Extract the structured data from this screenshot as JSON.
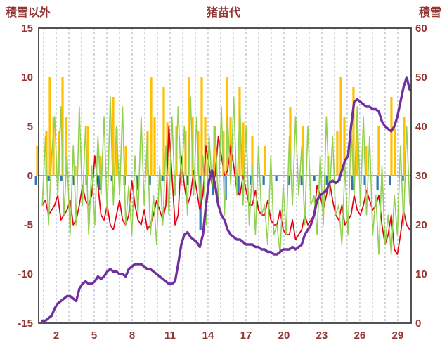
{
  "header": {
    "title": "猪苗代",
    "left_label": "積雪以外",
    "right_label": "積雪"
  },
  "colors": {
    "text": "#943634",
    "grid": "#a6adbb",
    "zero_line": "#808080",
    "border": "#404040",
    "red_line": "#e60012",
    "green_line": "#92d050",
    "purple_line": "#7030a0",
    "orange_bar": "#ffc000",
    "blue_bar": "#2e75b6",
    "background": "#ffffff"
  },
  "chart_data": {
    "type": "line",
    "title": "猪苗代",
    "x_axis": {
      "tick_labels": [
        "2",
        "5",
        "8",
        "11",
        "14",
        "17",
        "20",
        "23",
        "26",
        "29"
      ],
      "day_start": 1,
      "day_end": 30,
      "grid": "dashed-vertical-per-day"
    },
    "left_axis": {
      "label": "積雪以外",
      "range": [
        -15,
        15
      ],
      "ticks": [
        "15",
        "10",
        "5",
        "0",
        "-5",
        "-10",
        "-15"
      ]
    },
    "right_axis": {
      "label": "積雪",
      "range": [
        0,
        60
      ],
      "ticks": [
        "60",
        "50",
        "40",
        "30",
        "20",
        "10",
        "0"
      ]
    },
    "legend": "none",
    "series": [
      {
        "id": "red_line",
        "type": "line",
        "axis": "left",
        "values": [
          -3,
          -2.5,
          -4,
          -3.5,
          -3,
          -2,
          -4.5,
          -4,
          -3.5,
          -2.5,
          -5,
          -4.5,
          -3,
          -1,
          -2.5,
          -3,
          -2,
          2,
          -1,
          -4,
          -4.5,
          -3,
          -5,
          -5.5,
          -4,
          -2.5,
          -4.5,
          -5,
          -4,
          -0.5,
          -3,
          -4.5,
          -5,
          -3.5,
          -5.5,
          -5,
          -4,
          -2.5,
          -3.5,
          -4.5,
          -3,
          5,
          0,
          -5,
          -4,
          2,
          -1,
          -3,
          -2,
          0.5,
          -1.5,
          -3.5,
          -2,
          3,
          1,
          -1,
          0,
          4,
          2,
          0,
          0.5,
          3,
          1,
          -1.5,
          -2,
          0,
          -1.5,
          -3,
          -3,
          -1.5,
          -3.5,
          -4,
          -4,
          -2.5,
          -4.5,
          -5,
          -5,
          -3.5,
          -5.5,
          -6,
          -6,
          -4.5,
          -6.5,
          -6,
          -5.5,
          -4,
          -5,
          -4.5,
          -4,
          -1,
          -2,
          -3.5,
          -2,
          -0.5,
          -2.5,
          -4,
          -4.5,
          -3,
          -5,
          -4.5,
          -4,
          -2,
          -3.5,
          -4,
          -3,
          -1.5,
          -2.5,
          -3.5,
          -3,
          -2,
          -5,
          -7,
          -6,
          -4,
          -7.5,
          -8,
          -6,
          -3.5,
          -5,
          -5.5
        ]
      },
      {
        "id": "green_line",
        "type": "line",
        "axis": "left",
        "values": [
          -3,
          4,
          -5,
          2,
          6,
          -2,
          7,
          -4,
          2,
          -6,
          3,
          -5,
          7,
          -3,
          5,
          -6,
          1,
          -5,
          4,
          -2,
          6,
          -4,
          8,
          -3,
          5,
          -2,
          7,
          -5,
          -1,
          -6,
          2,
          -4,
          6,
          -3,
          4,
          -6,
          -2,
          -7,
          1,
          -5,
          3,
          -4,
          6,
          -2,
          7,
          -1,
          5,
          -4,
          8,
          -2,
          6,
          -3,
          2,
          -5,
          4,
          -1,
          5,
          -3,
          7,
          -4,
          6,
          -1,
          8,
          -2,
          7,
          -3,
          5,
          -5,
          1,
          -6,
          3,
          -4,
          -3,
          -7,
          2,
          -6,
          -5,
          -8,
          -1,
          -6,
          4,
          -3,
          6,
          -2,
          3,
          -5,
          5,
          -3,
          -2,
          -6,
          2,
          -5,
          6,
          -2,
          4,
          -4,
          -3,
          -7,
          1,
          -6,
          5,
          -2,
          7,
          -3,
          6,
          -4,
          4,
          -6,
          -2,
          -8,
          1,
          -7,
          -4,
          -8,
          -2,
          -6,
          3,
          -5,
          5,
          -3
        ]
      },
      {
        "id": "purple_line",
        "type": "line",
        "axis": "right",
        "values": [
          0.5,
          0.5,
          1,
          1.5,
          3,
          4,
          4.5,
          5,
          5.5,
          5.5,
          5,
          4.5,
          7,
          8,
          8.5,
          8,
          8,
          8.5,
          9.5,
          9,
          9.5,
          10.5,
          11,
          10.5,
          10.5,
          10,
          10,
          9.5,
          11,
          11.5,
          12,
          12,
          12,
          11.5,
          11,
          11,
          10.5,
          10,
          9.5,
          9,
          8.5,
          8,
          8,
          8.5,
          12,
          16,
          18,
          18.5,
          17.5,
          17,
          16.5,
          15.5,
          18,
          24,
          29,
          31,
          28,
          24,
          22,
          21,
          19,
          18,
          17.5,
          17,
          17,
          16.5,
          16,
          16,
          16,
          15.5,
          15.5,
          15,
          15,
          14.5,
          14.5,
          14,
          14,
          14.5,
          15,
          15,
          15,
          15.5,
          15,
          15.5,
          16,
          18,
          19,
          20,
          22,
          25,
          26,
          26.5,
          27,
          28.5,
          29,
          28.5,
          29,
          31,
          33,
          34,
          40,
          45,
          45.5,
          45,
          44.5,
          44,
          44,
          43.5,
          43.5,
          43,
          41,
          40,
          39.5,
          39,
          40,
          42,
          45,
          48,
          50,
          47.5
        ]
      },
      {
        "id": "orange_bars",
        "type": "bar",
        "axis": "left",
        "direction": "up",
        "per_day": [
          3,
          10,
          10,
          1,
          5,
          2,
          8,
          3,
          0,
          10,
          9,
          5,
          10,
          10,
          5,
          10,
          9,
          4,
          3,
          0,
          7,
          5,
          0,
          2,
          10,
          9,
          3,
          5,
          8,
          6
        ]
      },
      {
        "id": "blue_bars",
        "type": "bar",
        "axis": "left",
        "direction": "down",
        "per_day": [
          1,
          0.5,
          0.5,
          1,
          1,
          1.5,
          0.5,
          1,
          1.5,
          1,
          0.5,
          1.5,
          1,
          5.5,
          2,
          2.5,
          2,
          1,
          1,
          0.5,
          1,
          1,
          0.5,
          1,
          0.5,
          1.5,
          1,
          1.5,
          1,
          0.5
        ]
      }
    ]
  }
}
